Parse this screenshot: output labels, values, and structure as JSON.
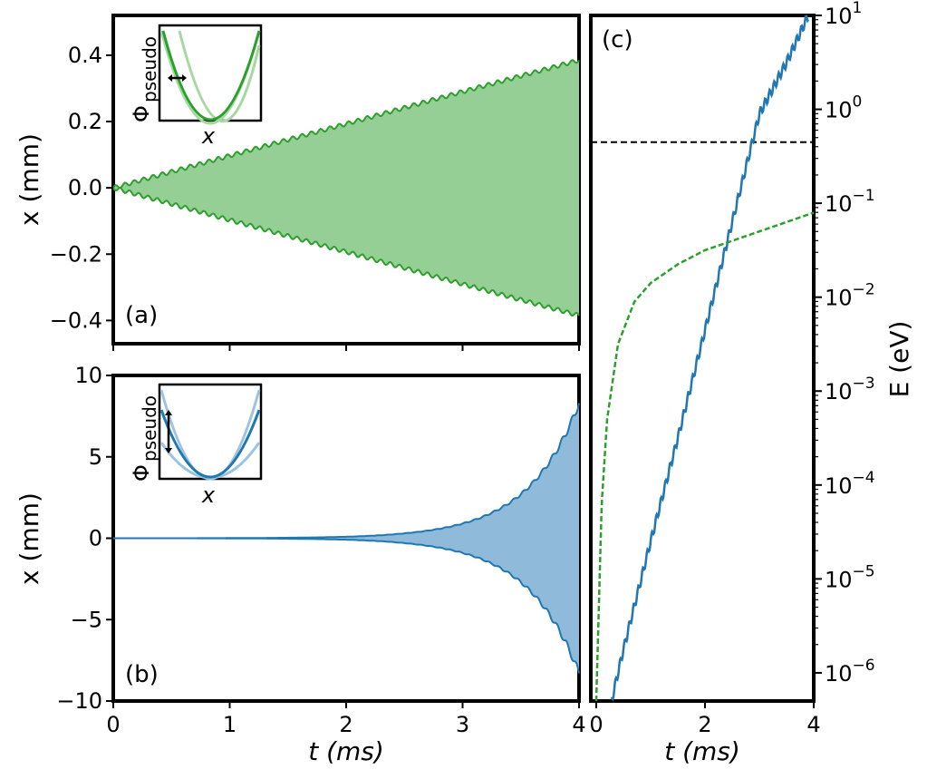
{
  "chart_data": [
    {
      "panel": "a",
      "type": "area",
      "panel_label": "(a)",
      "ylabel": "x (mm)",
      "xlabel": "",
      "xlim": [
        0,
        4
      ],
      "ylim": [
        -0.47,
        0.52
      ],
      "x_ticks": [
        0,
        1,
        2,
        3,
        4
      ],
      "y_ticks": [
        {
          "value": -0.4,
          "label": "−0.4"
        },
        {
          "value": -0.2,
          "label": "−0.2"
        },
        {
          "value": 0.0,
          "label": "0.0"
        },
        {
          "value": 0.2,
          "label": "0.2"
        },
        {
          "value": 0.4,
          "label": "0.4"
        }
      ],
      "envelope": {
        "x": [
          0,
          1,
          2,
          3,
          4
        ],
        "upper": [
          0,
          0.097,
          0.193,
          0.29,
          0.385
        ],
        "lower": [
          0,
          -0.097,
          -0.193,
          -0.29,
          -0.385
        ]
      },
      "color": "#2ca02c",
      "fill_color": "#95cf95",
      "inset": {
        "ylabel_main": "Φ",
        "ylabel_sub": "pseudo",
        "xlabel": "x",
        "modulation": "horizontal"
      }
    },
    {
      "panel": "b",
      "type": "area",
      "panel_label": "(b)",
      "ylabel": "x (mm)",
      "xlabel": "t (ms)",
      "xlim": [
        0,
        4
      ],
      "ylim": [
        -10,
        10
      ],
      "x_ticks": [
        0,
        1,
        2,
        3,
        4
      ],
      "y_ticks": [
        {
          "value": -10,
          "label": "−10"
        },
        {
          "value": -5,
          "label": "−5"
        },
        {
          "value": 0,
          "label": "0"
        },
        {
          "value": 5,
          "label": "5"
        },
        {
          "value": 10,
          "label": "10"
        }
      ],
      "envelope": {
        "x": [
          0,
          1,
          2,
          2.5,
          3,
          3.5,
          4
        ],
        "upper": [
          0.0,
          0.01,
          0.09,
          0.3,
          0.9,
          2.7,
          8.3
        ],
        "lower": [
          0.0,
          -0.01,
          -0.09,
          -0.3,
          -0.9,
          -2.7,
          -8.3
        ]
      },
      "color": "#1f77b4",
      "fill_color": "#8fbad9",
      "inset": {
        "ylabel_main": "Φ",
        "ylabel_sub": "pseudo",
        "xlabel": "x",
        "modulation": "vertical"
      }
    },
    {
      "panel": "c",
      "type": "line",
      "panel_label": "(c)",
      "xlabel": "t (ms)",
      "ylabel": "E (eV)",
      "xlim": [
        -0.1,
        4
      ],
      "ylim_log10": [
        -6.3,
        1
      ],
      "y_scale": "log",
      "x_ticks": [
        0,
        2,
        4
      ],
      "y_ticks": [
        -6,
        -5,
        -4,
        -3,
        -2,
        -1,
        0,
        1
      ],
      "series": [
        {
          "style": "solid",
          "color": "#1f77b4",
          "x": [
            0.28,
            0.5,
            1.0,
            1.5,
            2.0,
            2.5,
            3.0,
            3.5,
            3.9
          ],
          "y_log10": [
            -6.3,
            -5.75,
            -4.6,
            -3.5,
            -2.35,
            -1.2,
            -0.05,
            0.5,
            1.0
          ]
        },
        {
          "style": "dashed",
          "color": "#2ca02c",
          "x": [
            0.0,
            0.1,
            0.2,
            0.4,
            0.7,
            1.0,
            1.5,
            2.0,
            2.5,
            3.0,
            3.5,
            4.0
          ],
          "y_log10": [
            -6.3,
            -4.2,
            -3.3,
            -2.5,
            -2.05,
            -1.85,
            -1.65,
            -1.5,
            -1.4,
            -1.3,
            -1.2,
            -1.1
          ]
        }
      ],
      "reference_line": {
        "y_log10": -0.35,
        "style": "dashed",
        "color": "#000000"
      }
    }
  ]
}
